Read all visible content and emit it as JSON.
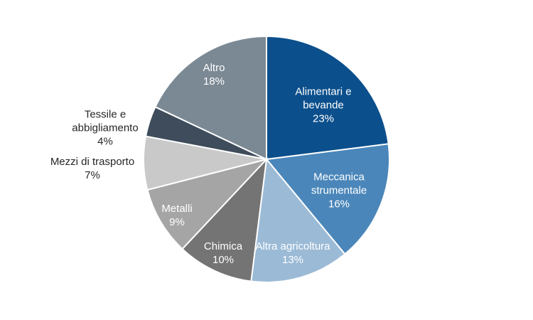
{
  "chart_data": {
    "type": "pie",
    "categories": [
      "Alimentari e bevande",
      "Meccanica strumentale",
      "Altra agricoltura",
      "Chimica",
      "Metalli",
      "Mezzi di trasporto",
      "Tessile e abbigliamento",
      "Altro"
    ],
    "values": [
      23,
      16,
      13,
      10,
      9,
      7,
      4,
      18
    ],
    "value_labels": [
      "23%",
      "16%",
      "13%",
      "10%",
      "9%",
      "7%",
      "4%",
      "18%"
    ],
    "colors": [
      "#0b4f8c",
      "#4a86b9",
      "#9bbad6",
      "#747474",
      "#a5a5a5",
      "#c9c9c9",
      "#3e4c5b",
      "#7b8994"
    ]
  }
}
